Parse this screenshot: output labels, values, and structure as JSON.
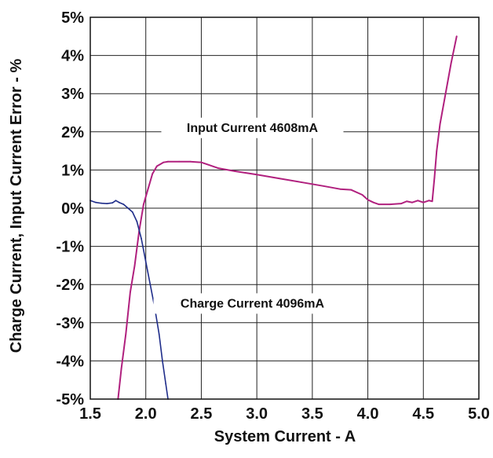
{
  "chart_data": {
    "type": "line",
    "title": "",
    "xlabel": "System Current - A",
    "ylabel": "Charge Current, Input Current Error - %",
    "xlim": [
      1.5,
      5.0
    ],
    "ylim": [
      -5,
      5
    ],
    "x_ticks": [
      1.5,
      2.0,
      2.5,
      3.0,
      3.5,
      4.0,
      4.5,
      5.0
    ],
    "x_tick_labels": [
      "1.5",
      "2.0",
      "2.5",
      "3.0",
      "3.5",
      "4.0",
      "4.5",
      "5.0"
    ],
    "y_ticks": [
      -5,
      -4,
      -3,
      -2,
      -1,
      0,
      1,
      2,
      3,
      4,
      5
    ],
    "y_tick_labels": [
      "-5%",
      "-4%",
      "-3%",
      "-2%",
      "-1%",
      "0%",
      "1%",
      "2%",
      "3%",
      "4%",
      "5%"
    ],
    "grid": true,
    "legend": "none",
    "annotations": [
      {
        "text": "Input Current 4608mA",
        "x": 2.96,
        "y": 2.0,
        "series": "Input Current"
      },
      {
        "text": "Charge Current 4096mA",
        "x": 2.96,
        "y": -2.6,
        "series": "Charge Current"
      }
    ],
    "series": [
      {
        "name": "Input Current",
        "color": "#b0207e",
        "x": [
          1.75,
          1.78,
          1.82,
          1.86,
          1.9,
          1.94,
          1.98,
          2.02,
          2.06,
          2.1,
          2.13,
          2.16,
          2.2,
          2.3,
          2.4,
          2.5,
          2.55,
          2.65,
          2.8,
          3.0,
          3.2,
          3.4,
          3.6,
          3.75,
          3.85,
          3.95,
          4.0,
          4.05,
          4.1,
          4.2,
          4.3,
          4.35,
          4.4,
          4.45,
          4.5,
          4.55,
          4.58,
          4.6,
          4.62,
          4.65,
          4.7,
          4.75,
          4.8
        ],
        "values": [
          -5.0,
          -4.2,
          -3.3,
          -2.2,
          -1.5,
          -0.6,
          0.1,
          0.5,
          0.9,
          1.1,
          1.15,
          1.2,
          1.22,
          1.22,
          1.22,
          1.2,
          1.15,
          1.05,
          0.97,
          0.88,
          0.78,
          0.68,
          0.58,
          0.5,
          0.48,
          0.35,
          0.22,
          0.15,
          0.1,
          0.1,
          0.12,
          0.18,
          0.15,
          0.2,
          0.15,
          0.2,
          0.18,
          0.8,
          1.5,
          2.2,
          3.0,
          3.8,
          4.5
        ]
      },
      {
        "name": "Charge Current",
        "color": "#1f2d8a",
        "x": [
          1.5,
          1.55,
          1.6,
          1.65,
          1.7,
          1.73,
          1.76,
          1.8,
          1.84,
          1.88,
          1.92,
          1.96,
          2.0,
          2.04,
          2.08,
          2.12,
          2.15,
          2.18,
          2.2
        ],
        "values": [
          0.2,
          0.15,
          0.13,
          0.12,
          0.14,
          0.2,
          0.15,
          0.1,
          0.0,
          -0.1,
          -0.35,
          -0.8,
          -1.4,
          -2.0,
          -2.6,
          -3.3,
          -4.0,
          -4.6,
          -5.0
        ]
      }
    ]
  }
}
